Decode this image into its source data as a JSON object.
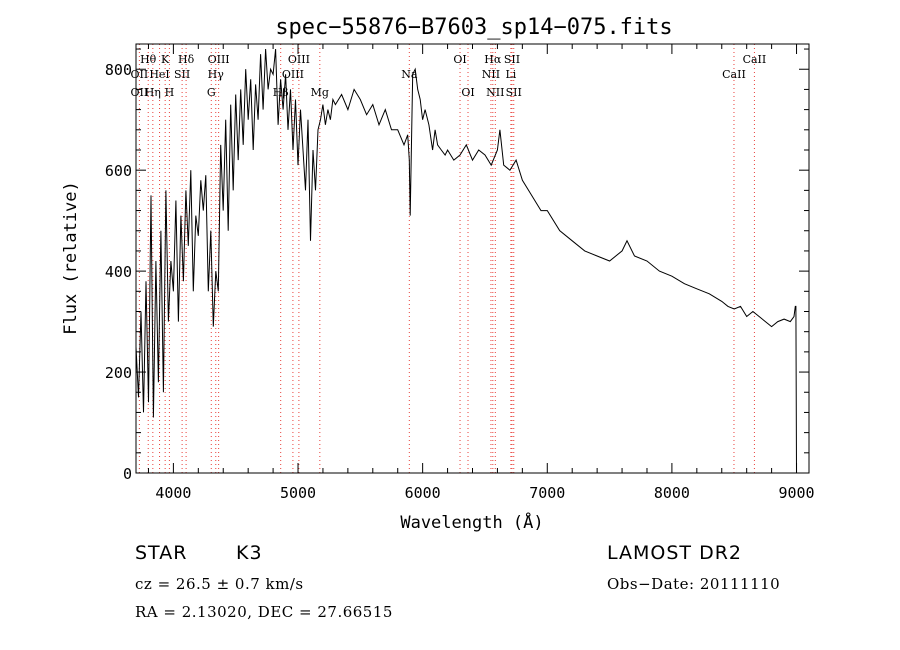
{
  "chart_data": {
    "type": "line",
    "title": "spec−55876−B7603_sp14−075.fits",
    "xlabel": "Wavelength (Å)",
    "ylabel": "Flux (relative)",
    "xlim": [
      3700,
      9100
    ],
    "ylim": [
      0,
      850
    ],
    "xticks": [
      4000,
      5000,
      6000,
      7000,
      8000,
      9000
    ],
    "yticks": [
      0,
      200,
      400,
      600,
      800
    ],
    "grid": false,
    "series": [
      {
        "x": [
          3700,
          3720,
          3740,
          3760,
          3780,
          3800,
          3820,
          3840,
          3860,
          3880,
          3900,
          3920,
          3940,
          3960,
          3980,
          4000,
          4020,
          4040,
          4060,
          4080,
          4100,
          4120,
          4140,
          4160,
          4180,
          4200,
          4220,
          4240,
          4260,
          4280,
          4300,
          4320,
          4340,
          4360,
          4380,
          4400,
          4420,
          4440,
          4460,
          4480,
          4500,
          4520,
          4540,
          4560,
          4580,
          4600,
          4620,
          4640,
          4660,
          4680,
          4700,
          4720,
          4740,
          4760,
          4780,
          4800,
          4820,
          4840,
          4860,
          4880,
          4900,
          4920,
          4940,
          4960,
          4980,
          5000,
          5020,
          5040,
          5060,
          5080,
          5100,
          5120,
          5140,
          5160,
          5180,
          5200,
          5220,
          5240,
          5260,
          5280,
          5300,
          5350,
          5400,
          5450,
          5500,
          5550,
          5600,
          5650,
          5700,
          5750,
          5800,
          5850,
          5880,
          5893,
          5900,
          5920,
          5940,
          5960,
          5980,
          6000,
          6020,
          6050,
          6080,
          6100,
          6120,
          6150,
          6180,
          6200,
          6250,
          6300,
          6350,
          6400,
          6450,
          6500,
          6550,
          6600,
          6620,
          6650,
          6700,
          6750,
          6800,
          6850,
          6900,
          6950,
          7000,
          7100,
          7200,
          7300,
          7400,
          7500,
          7600,
          7640,
          7700,
          7800,
          7900,
          8000,
          8100,
          8200,
          8300,
          8400,
          8450,
          8500,
          8550,
          8600,
          8650,
          8700,
          8750,
          8800,
          8850,
          8900,
          8950,
          8980,
          8990,
          8995,
          9000
        ],
        "y": [
          250,
          150,
          320,
          120,
          380,
          140,
          550,
          110,
          420,
          180,
          480,
          160,
          560,
          300,
          420,
          360,
          540,
          300,
          510,
          380,
          560,
          450,
          600,
          360,
          510,
          470,
          580,
          520,
          590,
          360,
          480,
          290,
          400,
          360,
          650,
          520,
          700,
          480,
          730,
          560,
          750,
          620,
          760,
          650,
          800,
          700,
          780,
          640,
          770,
          700,
          830,
          720,
          840,
          760,
          800,
          790,
          840,
          690,
          780,
          720,
          790,
          680,
          760,
          640,
          740,
          610,
          720,
          640,
          560,
          700,
          460,
          640,
          560,
          680,
          700,
          730,
          690,
          720,
          700,
          740,
          730,
          750,
          720,
          760,
          740,
          710,
          730,
          690,
          720,
          680,
          680,
          650,
          670,
          620,
          510,
          790,
          800,
          760,
          740,
          700,
          720,
          690,
          640,
          680,
          650,
          640,
          630,
          640,
          620,
          630,
          650,
          620,
          640,
          630,
          610,
          640,
          680,
          610,
          600,
          620,
          580,
          560,
          540,
          520,
          520,
          480,
          460,
          440,
          430,
          420,
          440,
          460,
          430,
          420,
          400,
          390,
          375,
          365,
          355,
          340,
          330,
          325,
          330,
          310,
          320,
          310,
          300,
          290,
          300,
          305,
          300,
          310,
          330,
          330,
          0
        ]
      }
    ],
    "line_labels": [
      {
        "label": "Hθ",
        "wl": 3798,
        "row": 1
      },
      {
        "label": "K",
        "wl": 3934,
        "row": 1
      },
      {
        "label": "Hδ",
        "wl": 4102,
        "row": 1
      },
      {
        "label": "OIII",
        "wl": 4363,
        "row": 1
      },
      {
        "label": "OIII",
        "wl": 5007,
        "row": 1
      },
      {
        "label": "OI",
        "wl": 6300,
        "row": 1
      },
      {
        "label": "Hα",
        "wl": 6563,
        "row": 1
      },
      {
        "label": "SII",
        "wl": 6717,
        "row": 1
      },
      {
        "label": "CaII",
        "wl": 8662,
        "row": 1
      },
      {
        "label": "OII",
        "wl": 3727,
        "row": 2
      },
      {
        "label": "HeI",
        "wl": 3889,
        "row": 2
      },
      {
        "label": "SII",
        "wl": 4070,
        "row": 2
      },
      {
        "label": "Hγ",
        "wl": 4340,
        "row": 2
      },
      {
        "label": "OIII",
        "wl": 4959,
        "row": 2
      },
      {
        "label": "Na",
        "wl": 5893,
        "row": 2
      },
      {
        "label": "NII",
        "wl": 6548,
        "row": 2
      },
      {
        "label": "Li",
        "wl": 6708,
        "row": 2
      },
      {
        "label": "CaII",
        "wl": 8498,
        "row": 2
      },
      {
        "label": "OII",
        "wl": 3727,
        "row": 3
      },
      {
        "label": "Hη",
        "wl": 3835,
        "row": 3
      },
      {
        "label": "H",
        "wl": 3968,
        "row": 3
      },
      {
        "label": "G",
        "wl": 4304,
        "row": 3
      },
      {
        "label": "Hβ",
        "wl": 4861,
        "row": 3
      },
      {
        "label": "Mg",
        "wl": 5175,
        "row": 3
      },
      {
        "label": "OI",
        "wl": 6364,
        "row": 3
      },
      {
        "label": "NII",
        "wl": 6583,
        "row": 3
      },
      {
        "label": "SII",
        "wl": 6731,
        "row": 3
      }
    ],
    "line_colors": {
      "ink": "#000000",
      "marker_line": "#e8403a"
    }
  },
  "info": {
    "object_class": "STAR",
    "subclass": "K3",
    "survey": "LAMOST DR2",
    "redshift_text": "cz = 26.5 ± 0.7 km/s",
    "obs_date": "Obs−Date: 20111110",
    "coords": "RA =    2.13020, DEC =   27.66515"
  }
}
